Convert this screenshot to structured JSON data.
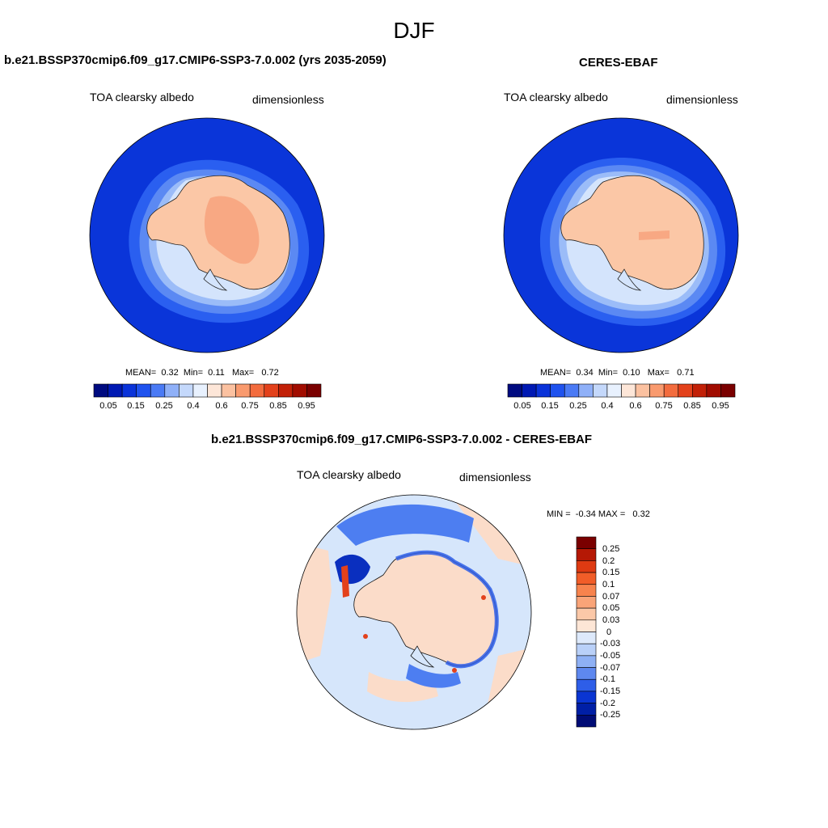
{
  "season": "DJF",
  "panels": [
    {
      "title": "b.e21.BSSP370cmip6.f09_g17.CMIP6-SSP3-7.0.002 (yrs 2035-2059)",
      "left_label": "TOA clearsky albedo",
      "right_label": "dimensionless",
      "stats": {
        "mean_label": "MEAN=",
        "mean": "0.32",
        "min_label": "Min=",
        "min": "0.11",
        "max_label": "Max=",
        "max": "0.72"
      }
    },
    {
      "title": "CERES-EBAF",
      "left_label": "TOA clearsky albedo",
      "right_label": "dimensionless",
      "stats": {
        "mean_label": "MEAN=",
        "mean": "0.34",
        "min_label": "Min=",
        "min": "0.10",
        "max_label": "Max=",
        "max": "0.71"
      }
    },
    {
      "title": "b.e21.BSSP370cmip6.f09_g17.CMIP6-SSP3-7.0.002 - CERES-EBAF",
      "left_label": "TOA clearsky albedo",
      "right_label": "dimensionless",
      "stats": {
        "min_label": "MIN =",
        "min": "-0.34",
        "max_label": "MAX =",
        "max": "0.32"
      }
    }
  ],
  "colorbar_abs": {
    "tick_labels": [
      "0.05",
      "0.15",
      "0.25",
      "0.4",
      "0.6",
      "0.75",
      "0.85",
      "0.95"
    ],
    "colors": [
      "#000b80",
      "#0019b3",
      "#0a33d9",
      "#1f52ee",
      "#4a7af5",
      "#8fb0f8",
      "#c4d8fb",
      "#e8f1fe",
      "#fde6d8",
      "#fbc1a0",
      "#f99a6e",
      "#f36c3e",
      "#e3411b",
      "#c22007",
      "#a10c00",
      "#7a0000"
    ]
  },
  "colorbar_diff": {
    "tick_labels": [
      "0.25",
      "0.2",
      "0.15",
      "0.1",
      "0.07",
      "0.05",
      "0.03",
      "0",
      "-0.03",
      "-0.05",
      "-0.07",
      "-0.1",
      "-0.15",
      "-0.2",
      "-0.25"
    ],
    "colors": [
      "#7a0000",
      "#b51805",
      "#de3a12",
      "#f15d28",
      "#f7834d",
      "#f9a478",
      "#fbc8a8",
      "#fde6d6",
      "#dde9fb",
      "#b9d0f8",
      "#8eb0f4",
      "#5e88ef",
      "#2e5ee8",
      "#0a35d2",
      "#001fa6",
      "#000c75"
    ]
  },
  "map_colors": {
    "ocean": "#0a35d9",
    "ring1": "#2a5ff0",
    "ring2": "#5b89f3",
    "ring3": "#9bbcf8",
    "ring4": "#d4e4fc",
    "ice": "#fbc7a6",
    "ice_dark": "#f8a883",
    "diff_bg": "#d6e6fb",
    "diff_pos": "#fbdcc9",
    "diff_neg": "#4d7ef1",
    "diff_neg_strong": "#0a2fbf"
  }
}
